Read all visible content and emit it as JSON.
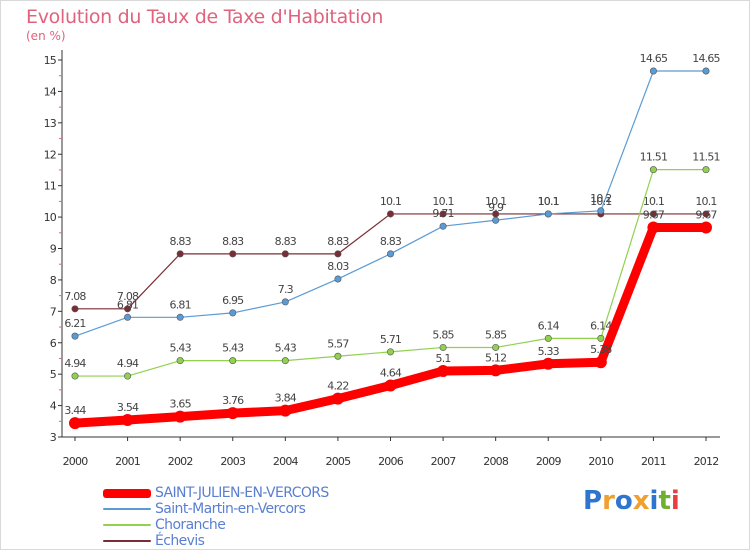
{
  "header": {
    "title": "Evolution du Taux de Taxe d'Habitation",
    "subtitle": "(en %)"
  },
  "chart_data": {
    "type": "line",
    "title": "Evolution du Taux de Taxe d'Habitation",
    "subtitle": "(en %)",
    "xlabel": "",
    "ylabel": "(en %)",
    "x": [
      "2000",
      "2001",
      "2002",
      "2003",
      "2004",
      "2005",
      "2006",
      "2007",
      "2008",
      "2009",
      "2010",
      "2011",
      "2012"
    ],
    "ylim": [
      3,
      15
    ],
    "yticks": [
      3,
      4,
      5,
      6,
      7,
      8,
      9,
      10,
      11,
      12,
      13,
      14,
      15
    ],
    "grid": false,
    "legend_position": "bottom-left",
    "series": [
      {
        "name": "Échevis",
        "color": "#7b2d35",
        "values": [
          7.08,
          7.08,
          8.83,
          8.83,
          8.83,
          8.83,
          10.1,
          10.1,
          10.1,
          10.1,
          10.1,
          10.1,
          10.1
        ],
        "labels": [
          "7.08",
          "7.08",
          "8.83",
          "8.83",
          "8.83",
          "8.83",
          "10.1",
          "10.1",
          "10.1",
          "10.1",
          "10.1",
          "10.1",
          "10.1"
        ]
      },
      {
        "name": "Saint-Martin-en-Vercors",
        "color": "#5b9bd5",
        "values": [
          6.21,
          6.81,
          6.81,
          6.95,
          7.3,
          8.03,
          8.83,
          9.71,
          9.9,
          10.1,
          10.2,
          14.65,
          14.65
        ],
        "labels": [
          "6.21",
          "6.81",
          "6.81",
          "6.95",
          "7.3",
          "8.03",
          "8.83",
          "9.71",
          "9.9",
          "10.1",
          "10.2",
          "14.65",
          "14.65"
        ]
      },
      {
        "name": "Choranche",
        "color": "#92d050",
        "values": [
          4.94,
          4.94,
          5.43,
          5.43,
          5.43,
          5.57,
          5.71,
          5.85,
          5.85,
          6.14,
          6.14,
          11.51,
          11.51
        ],
        "labels": [
          "4.94",
          "4.94",
          "5.43",
          "5.43",
          "5.43",
          "5.57",
          "5.71",
          "5.85",
          "5.85",
          "6.14",
          "6.14",
          "11.51",
          "11.51"
        ]
      },
      {
        "name": "SAINT-JULIEN-EN-VERCORS",
        "color": "#ff0000",
        "values": [
          3.44,
          3.54,
          3.65,
          3.76,
          3.84,
          4.22,
          4.64,
          5.1,
          5.12,
          5.33,
          5.38,
          9.67,
          9.67
        ],
        "labels": [
          "3.44",
          "3.54",
          "3.65",
          "3.76",
          "3.84",
          "4.22",
          "4.64",
          "5.1",
          "5.12",
          "5.33",
          "5.38",
          "9.67",
          "9.67"
        ]
      }
    ]
  },
  "legend": [
    {
      "label": "SAINT-JULIEN-EN-VERCORS",
      "color": "#ff0000"
    },
    {
      "label": "Saint-Martin-en-Vercors",
      "color": "#5b9bd5"
    },
    {
      "label": "Choranche",
      "color": "#92d050"
    },
    {
      "label": "Échevis",
      "color": "#7b2d35"
    }
  ],
  "logo": {
    "text": "Proxiti",
    "letter_colors": [
      "#2e75d0",
      "#f0a030",
      "#2e75d0",
      "#f0a030",
      "#2e75d0",
      "#70b030",
      "#e84040"
    ]
  }
}
